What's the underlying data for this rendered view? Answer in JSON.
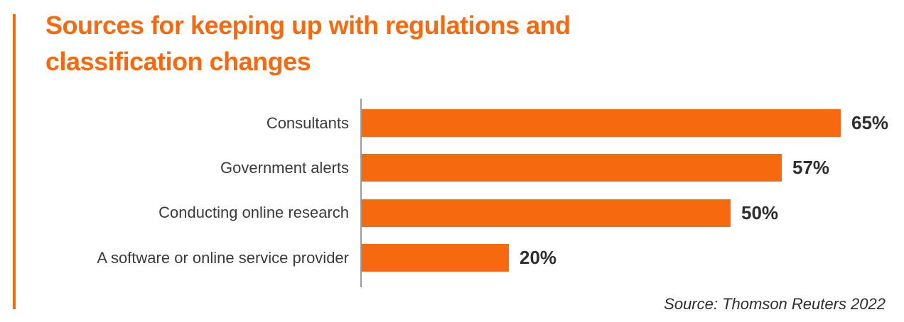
{
  "colors": {
    "accent": "#F6690F",
    "axis": "#9B9B9B",
    "label_text": "#3A3A3A",
    "value_text": "#2D2D2D",
    "background": "#FFFFFF"
  },
  "title": {
    "lines": [
      "Sources for keeping up with regulations and",
      "classification changes"
    ]
  },
  "source_note": "Source: Thomson Reuters 2022",
  "chart_data": {
    "type": "bar",
    "orientation": "horizontal",
    "title": "Sources for keeping up with regulations and classification changes",
    "categories": [
      "Consultants",
      "Government alerts",
      "Conducting online research",
      "A software or online service provider"
    ],
    "values": [
      65,
      57,
      50,
      20
    ],
    "value_labels": [
      "65%",
      "57%",
      "50%",
      "20%"
    ],
    "unit": "percent",
    "xlim": [
      0,
      65
    ],
    "grid": false,
    "legend": false,
    "bar_color": "#F6690F",
    "axis_color": "#9B9B9B",
    "source": "Source: Thomson Reuters 2022"
  }
}
